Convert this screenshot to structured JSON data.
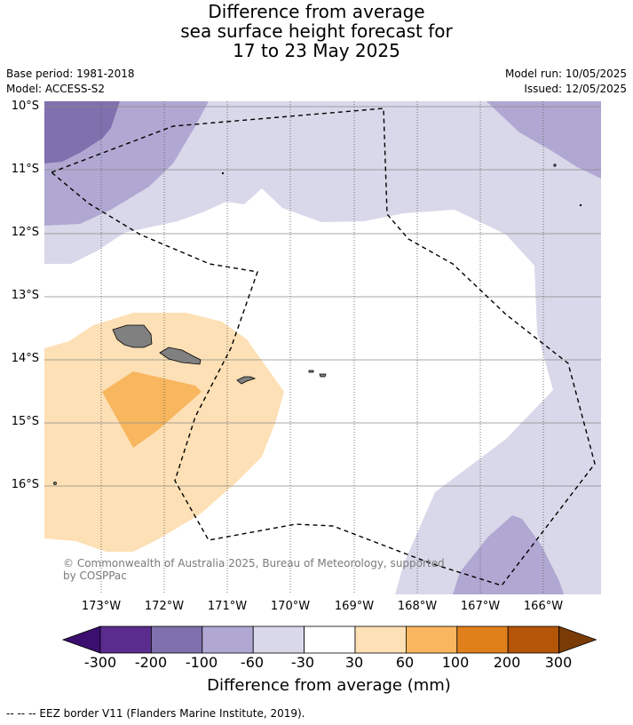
{
  "header": {
    "title_line1": "Difference from average",
    "title_line2": "sea surface height forecast for",
    "title_line3": "17 to 23 May 2025",
    "base_period": "Base period: 1981-2018",
    "model": "Model: ACCESS-S2",
    "model_run": "Model run: 10/05/2025",
    "issued": "Issued: 12/05/2025"
  },
  "map": {
    "lat_labels": [
      "10°S",
      "11°S",
      "12°S",
      "13°S",
      "14°S",
      "15°S",
      "16°S"
    ],
    "lon_labels": [
      "173°W",
      "172°W",
      "171°W",
      "170°W",
      "169°W",
      "168°W",
      "167°W",
      "166°W"
    ],
    "copyright": "© Commonwealth of Australia 2025, Bureau of Meteorology, supported by COSPPac",
    "land_color": "#808080",
    "eez_color": "#000000"
  },
  "colorbar": {
    "tick_labels": [
      "-300",
      "-200",
      "-100",
      "-60",
      "-30",
      "30",
      "60",
      "100",
      "200",
      "300"
    ],
    "colors": [
      "#3b0f6f",
      "#5a2c8d",
      "#8070ad",
      "#b0a8d2",
      "#d8d8ea",
      "#ffffff",
      "#fde0b5",
      "#f8b65e",
      "#e0801a",
      "#b45508",
      "#7a3b06"
    ],
    "title": "Difference from average (mm)"
  },
  "footnote": "-- -- -- EEZ border V11 (Flanders Marine Institute, 2019)."
}
